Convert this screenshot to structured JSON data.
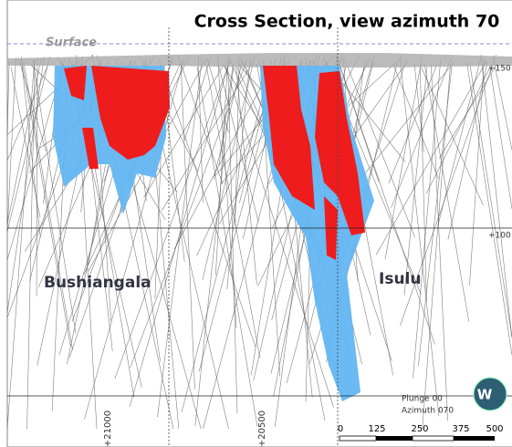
{
  "title": "Cross Section, view azimuth 70",
  "surface_label": "Surface",
  "elevation_labels": [
    "+150",
    "+100"
  ],
  "easting_labels": [
    "+21000",
    "+20500"
  ],
  "deposits": [
    "Bushiangala",
    "Isulu"
  ],
  "orientation": {
    "plunge": "Plunge 00",
    "azimuth": "Azimuth 070"
  },
  "scale_labels": [
    "0",
    "125",
    "250",
    "375",
    "500"
  ],
  "logo": "W"
}
